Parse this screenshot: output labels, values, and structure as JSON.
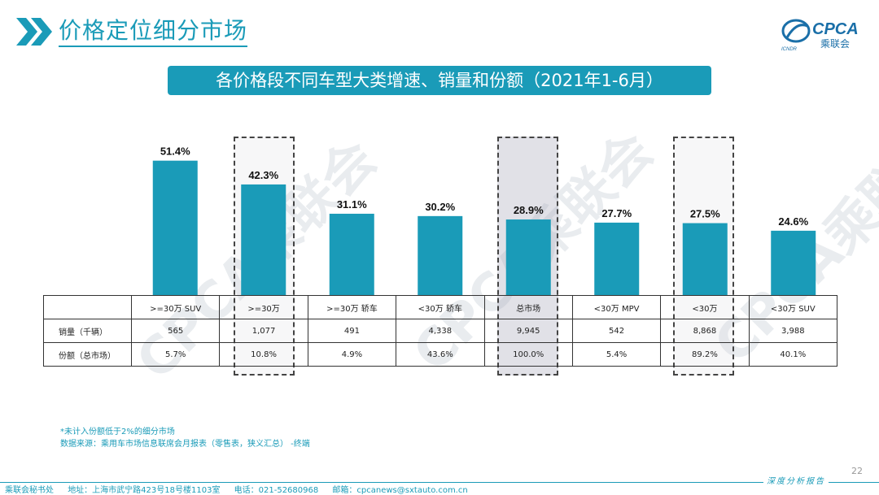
{
  "header": {
    "title": "价格定位细分市场",
    "logo_text": "CPCA",
    "logo_sub": "乘联会",
    "logo_mark": "ICNDR"
  },
  "subtitle": "各价格段不同车型大类增速、销量和份额（2021年1-6月）",
  "watermark": "CPCA乘联会",
  "chart_data": {
    "type": "bar",
    "categories": [
      ">=30万 SUV",
      ">=30万",
      ">=30万 轿车",
      "<30万 轿车",
      "总市场",
      "<30万 MPV",
      "<30万",
      "<30万 SUV"
    ],
    "series": [
      {
        "values": [
          51.4,
          42.3,
          31.1,
          30.2,
          28.9,
          27.7,
          27.5,
          24.6
        ]
      }
    ],
    "value_labels": [
      "51.4%",
      "42.3%",
      "31.1%",
      "30.2%",
      "28.9%",
      "27.7%",
      "27.5%",
      "24.6%"
    ],
    "color": "#1a9bb8",
    "highlighted_categories": [
      ">=30万",
      "总市场",
      "<30万"
    ],
    "title": "",
    "xlabel": "",
    "ylabel": "",
    "ylim": [
      0,
      60
    ],
    "grid": false
  },
  "table": {
    "rows": [
      {
        "label": "销量（千辆）",
        "values": [
          "565",
          "1,077",
          "491",
          "4,338",
          "9,945",
          "542",
          "8,868",
          "3,988"
        ]
      },
      {
        "label": "份额（总市场）",
        "values": [
          "5.7%",
          "10.8%",
          "4.9%",
          "43.6%",
          "100.0%",
          "5.4%",
          "89.2%",
          "40.1%"
        ]
      }
    ]
  },
  "notes": {
    "line1": "*未计入份额低于2%的细分市场",
    "line2": "数据来源：乘用车市场信息联席会月报表（零售表，狭义汇总）  -终端"
  },
  "footer": {
    "office": "乘联会秘书处",
    "address": "地址：上海市武宁路423号18号楼1103室",
    "phone": "电话：021-52680968",
    "email": "邮箱：cpcanews@sxtauto.com.cn",
    "report_tag": "深度分析报告",
    "page_number": "22"
  },
  "colors": {
    "accent": "#1a9bb8",
    "dash_border": "#444444"
  }
}
